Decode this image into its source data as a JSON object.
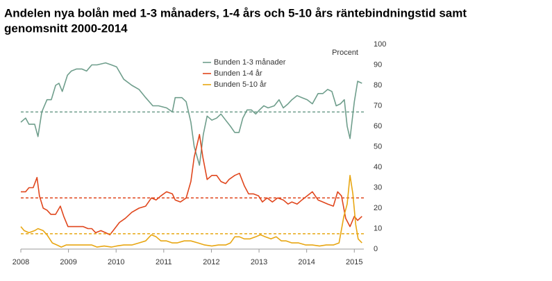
{
  "chart_data": {
    "type": "line",
    "title": [
      "Andelen nya bolån med 1-3 månaders, 1-4 års och 5-10 års räntebindningstid samt",
      "genomsnitt 2000-2014"
    ],
    "y_axis_label": "Procent",
    "xlim": [
      2008,
      2015.2
    ],
    "xticks": [
      2008,
      2009,
      2010,
      2011,
      2012,
      2013,
      2014,
      2015
    ],
    "ylim": [
      0,
      100
    ],
    "yticks": [
      0,
      10,
      20,
      30,
      40,
      50,
      60,
      70,
      80,
      90,
      100
    ],
    "legend": "top",
    "series": [
      {
        "name": "Bunden 1-3 månader",
        "color": "#6f9e8c",
        "mean": 67,
        "x": [
          2008.0,
          2008.1,
          2008.17,
          2008.29,
          2008.36,
          2008.44,
          2008.55,
          2008.64,
          2008.73,
          2008.8,
          2008.87,
          2008.98,
          2009.06,
          2009.17,
          2009.28,
          2009.38,
          2009.49,
          2009.6,
          2009.78,
          2009.9,
          2010.01,
          2010.16,
          2010.33,
          2010.48,
          2010.62,
          2010.77,
          2010.89,
          2011.06,
          2011.18,
          2011.24,
          2011.38,
          2011.47,
          2011.57,
          2011.64,
          2011.75,
          2011.83,
          2011.91,
          2012.01,
          2012.11,
          2012.2,
          2012.3,
          2012.4,
          2012.49,
          2012.58,
          2012.66,
          2012.75,
          2012.84,
          2012.93,
          2013.01,
          2013.1,
          2013.19,
          2013.32,
          2013.42,
          2013.51,
          2013.61,
          2013.69,
          2013.8,
          2013.9,
          2014.01,
          2014.12,
          2014.24,
          2014.34,
          2014.44,
          2014.53,
          2014.62,
          2014.71,
          2014.79,
          2014.85,
          2014.91,
          2015.0,
          2015.07,
          2015.16
        ],
        "values": [
          62,
          64,
          61,
          61,
          55,
          67,
          73,
          73,
          80,
          81,
          77,
          85,
          87,
          88,
          88,
          87,
          90,
          90,
          91,
          90,
          89,
          83,
          80,
          78,
          74,
          70,
          70,
          69,
          67,
          74,
          74,
          72,
          62,
          50,
          41,
          56,
          65,
          63,
          64,
          66,
          63,
          60,
          57,
          57,
          64,
          68,
          68,
          66,
          68,
          70,
          69,
          70,
          73,
          69,
          71,
          73,
          75,
          74,
          73,
          71,
          76,
          76,
          78,
          77,
          70,
          71,
          73,
          60,
          54,
          72,
          82,
          81
        ]
      },
      {
        "name": "Bunden 1-4 år",
        "color": "#e0461c",
        "mean": 25,
        "x": [
          2008.0,
          2008.1,
          2008.17,
          2008.26,
          2008.34,
          2008.39,
          2008.47,
          2008.55,
          2008.63,
          2008.73,
          2008.83,
          2008.9,
          2008.99,
          2009.09,
          2009.24,
          2009.31,
          2009.41,
          2009.49,
          2009.57,
          2009.68,
          2009.78,
          2009.87,
          2009.97,
          2010.07,
          2010.19,
          2010.33,
          2010.48,
          2010.62,
          2010.74,
          2010.84,
          2010.94,
          2011.06,
          2011.18,
          2011.24,
          2011.35,
          2011.47,
          2011.57,
          2011.64,
          2011.75,
          2011.82,
          2011.91,
          2012.01,
          2012.11,
          2012.2,
          2012.3,
          2012.37,
          2012.49,
          2012.59,
          2012.69,
          2012.78,
          2012.88,
          2012.99,
          2013.07,
          2013.17,
          2013.28,
          2013.39,
          2013.51,
          2013.61,
          2013.69,
          2013.8,
          2013.9,
          2014.01,
          2014.12,
          2014.24,
          2014.34,
          2014.44,
          2014.56,
          2014.65,
          2014.73,
          2014.82,
          2014.91,
          2015.0,
          2015.07,
          2015.16
        ],
        "values": [
          28,
          28,
          30,
          30,
          35,
          26,
          20,
          19,
          17,
          17,
          21,
          16,
          11,
          11,
          11,
          11,
          10,
          10,
          8,
          9,
          8,
          7,
          10,
          13,
          15,
          18,
          20,
          21,
          25,
          24,
          26,
          28,
          27,
          24,
          23,
          25,
          33,
          45,
          56,
          45,
          34,
          36,
          36,
          33,
          32,
          34,
          36,
          37,
          31,
          27,
          27,
          26,
          23,
          25,
          23,
          25,
          24,
          22,
          23,
          22,
          24,
          26,
          28,
          24,
          23,
          22,
          21,
          28,
          26,
          15,
          11,
          16,
          14,
          16
        ]
      },
      {
        "name": "Bunden 5-10 år",
        "color": "#e8a612",
        "mean": 7.5,
        "x": [
          2008.0,
          2008.07,
          2008.17,
          2008.29,
          2008.36,
          2008.47,
          2008.55,
          2008.66,
          2008.76,
          2008.85,
          2008.95,
          2009.09,
          2009.24,
          2009.38,
          2009.49,
          2009.6,
          2009.75,
          2009.9,
          2010.01,
          2010.16,
          2010.33,
          2010.48,
          2010.62,
          2010.74,
          2010.84,
          2010.94,
          2011.06,
          2011.18,
          2011.28,
          2011.43,
          2011.57,
          2011.72,
          2011.86,
          2012.01,
          2012.15,
          2012.3,
          2012.4,
          2012.49,
          2012.59,
          2012.69,
          2012.81,
          2012.93,
          2013.03,
          2013.13,
          2013.25,
          2013.36,
          2013.47,
          2013.57,
          2013.69,
          2013.83,
          2013.98,
          2014.12,
          2014.27,
          2014.41,
          2014.56,
          2014.68,
          2014.78,
          2014.85,
          2014.91,
          2014.97,
          2015.03,
          2015.08,
          2015.16
        ],
        "values": [
          11,
          9,
          8,
          9,
          10,
          9,
          7,
          3,
          2,
          1,
          2,
          2,
          2,
          2,
          2,
          1,
          1.5,
          1,
          1.5,
          2,
          2,
          3,
          4,
          7,
          6,
          4,
          4,
          3,
          3,
          4,
          4,
          3,
          2,
          1.5,
          2,
          2,
          3,
          6,
          6,
          5,
          5,
          6,
          7,
          6,
          5,
          6,
          4,
          4,
          3,
          3,
          2,
          2,
          1.5,
          2,
          2,
          3,
          16,
          22,
          36,
          27,
          12,
          5,
          3
        ]
      }
    ]
  }
}
